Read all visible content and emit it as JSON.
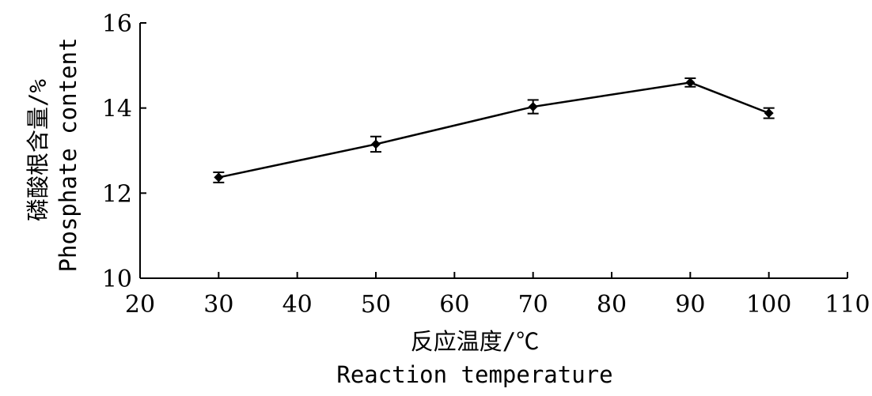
{
  "chart_data": {
    "type": "line",
    "title": "",
    "xlabel_cn": "反应温度/℃",
    "xlabel": "Reaction temperature",
    "ylabel_cn": "磷酸根含量/%",
    "ylabel": "Phosphate content",
    "xlim": [
      20,
      110
    ],
    "ylim": [
      10,
      16
    ],
    "xticks": [
      "20",
      "30",
      "40",
      "50",
      "60",
      "70",
      "80",
      "90",
      "100",
      "110"
    ],
    "yticks": [
      "10",
      "12",
      "14",
      "16"
    ],
    "grid": false,
    "series": [
      {
        "x": [
          30,
          50,
          70,
          90,
          100
        ],
        "y": [
          12.37,
          13.15,
          14.03,
          14.6,
          13.88
        ],
        "error": [
          0.12,
          0.18,
          0.16,
          0.1,
          0.12
        ],
        "color": "#000000",
        "marker": "diamond"
      }
    ]
  }
}
